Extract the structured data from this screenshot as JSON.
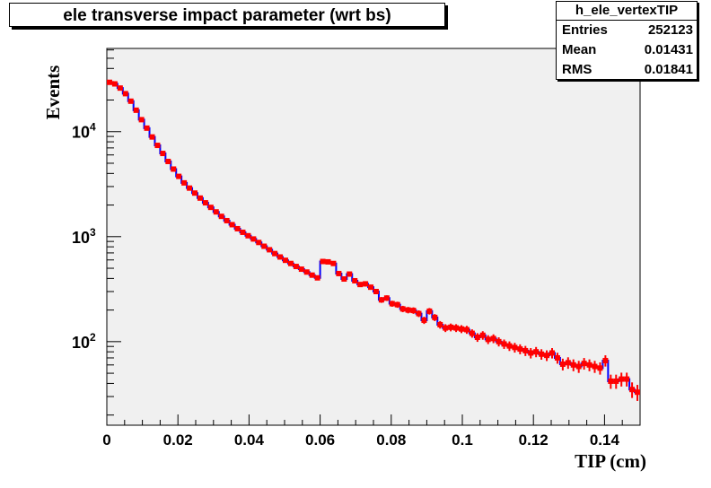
{
  "chart_data": {
    "type": "histogram",
    "title": "ele transverse impact parameter (wrt bs)",
    "xlabel": "TIP (cm)",
    "ylabel": "Events",
    "xlim": [
      0,
      0.15
    ],
    "ylim": [
      16,
      62000
    ],
    "y_scale": "log",
    "grid": false,
    "x_ticks": [
      0,
      0.02,
      0.04,
      0.06,
      0.08,
      0.1,
      0.12,
      0.14
    ],
    "x_tick_labels": [
      "0",
      "0.02",
      "0.04",
      "0.06",
      "0.08",
      "0.1",
      "0.12",
      "0.14"
    ],
    "y_tick_labels": [
      {
        "value": 10000,
        "base": "10",
        "exp": "4"
      },
      {
        "value": 1000,
        "base": "10",
        "exp": "3"
      },
      {
        "value": 100,
        "base": "10",
        "exp": "2"
      }
    ],
    "series": [
      {
        "style": "line",
        "color": "#0000ff",
        "x": [
          0.0,
          0.0015,
          0.003,
          0.0045,
          0.006,
          0.0075,
          0.009,
          0.0105,
          0.012,
          0.0135,
          0.015,
          0.0165,
          0.018,
          0.0195,
          0.021,
          0.0225,
          0.024,
          0.0255,
          0.027,
          0.0285,
          0.03,
          0.0315,
          0.033,
          0.0345,
          0.036,
          0.0375,
          0.039,
          0.0405,
          0.042,
          0.0435,
          0.045,
          0.0465,
          0.048,
          0.0495,
          0.051,
          0.0525,
          0.054,
          0.0555,
          0.057,
          0.0585,
          0.06,
          0.0615,
          0.063,
          0.0645,
          0.066,
          0.0675,
          0.069,
          0.0705,
          0.072,
          0.0735,
          0.075,
          0.0765,
          0.078,
          0.0795,
          0.081,
          0.0825,
          0.084,
          0.0855,
          0.087,
          0.0885,
          0.09,
          0.0915,
          0.093,
          0.0945,
          0.096,
          0.0975,
          0.099,
          0.1005,
          0.102,
          0.1035,
          0.105,
          0.1065,
          0.108,
          0.1095,
          0.111,
          0.1125,
          0.114,
          0.1155,
          0.117,
          0.1185,
          0.12,
          0.1215,
          0.123,
          0.1245,
          0.126,
          0.1275,
          0.129,
          0.1305,
          0.132,
          0.1335,
          0.135,
          0.1365,
          0.138,
          0.1395,
          0.141,
          0.1425,
          0.144,
          0.1455,
          0.147,
          0.1485
        ],
        "y": [
          29500,
          28500,
          26000,
          23000,
          19500,
          16000,
          13000,
          10800,
          8900,
          7400,
          6200,
          5200,
          4400,
          3750,
          3250,
          2900,
          2600,
          2330,
          2100,
          1900,
          1720,
          1560,
          1420,
          1300,
          1190,
          1100,
          1020,
          950,
          880,
          810,
          750,
          690,
          640,
          595,
          555,
          520,
          490,
          460,
          430,
          405,
          580,
          575,
          555,
          445,
          395,
          440,
          380,
          350,
          355,
          330,
          300,
          250,
          260,
          230,
          225,
          205,
          200,
          198,
          185,
          160,
          195,
          170,
          145,
          135,
          137,
          135,
          132,
          130,
          120,
          110,
          115,
          105,
          107,
          100,
          95,
          91,
          88,
          85,
          82,
          78,
          80,
          76,
          74,
          78,
          70,
          61,
          63,
          60,
          58,
          62,
          60,
          58,
          56,
          66,
          42,
          42,
          44,
          44,
          35,
          33
        ]
      },
      {
        "style": "markers-with-errors",
        "color": "#ff0000",
        "x": [
          0.00075,
          0.00225,
          0.00375,
          0.00525,
          0.00675,
          0.00825,
          0.00975,
          0.01125,
          0.01275,
          0.01425,
          0.01575,
          0.01725,
          0.01875,
          0.02025,
          0.02175,
          0.02325,
          0.02475,
          0.02625,
          0.02775,
          0.02925,
          0.03075,
          0.03225,
          0.03375,
          0.03525,
          0.03675,
          0.03825,
          0.03975,
          0.04125,
          0.04275,
          0.04425,
          0.04575,
          0.04725,
          0.04875,
          0.05025,
          0.05175,
          0.05325,
          0.05475,
          0.05625,
          0.05775,
          0.05925,
          0.06075,
          0.06225,
          0.06375,
          0.06525,
          0.06675,
          0.06825,
          0.06975,
          0.07125,
          0.07275,
          0.07425,
          0.07575,
          0.07725,
          0.07875,
          0.08025,
          0.08175,
          0.08325,
          0.08475,
          0.08625,
          0.08775,
          0.08925,
          0.09075,
          0.09225,
          0.09375,
          0.09525,
          0.09675,
          0.09825,
          0.09975,
          0.10125,
          0.10275,
          0.10425,
          0.10575,
          0.10725,
          0.10875,
          0.11025,
          0.11175,
          0.11325,
          0.11475,
          0.11625,
          0.11775,
          0.11925,
          0.12075,
          0.12225,
          0.12375,
          0.12525,
          0.12675,
          0.12825,
          0.12975,
          0.13125,
          0.13275,
          0.13425,
          0.13575,
          0.13725,
          0.13875,
          0.14025,
          0.14175,
          0.14325,
          0.14475,
          0.14625,
          0.14775,
          0.14925
        ],
        "y": [
          29500,
          28500,
          26000,
          23000,
          19500,
          16000,
          13000,
          10800,
          8900,
          7400,
          6200,
          5200,
          4400,
          3750,
          3250,
          2900,
          2600,
          2330,
          2100,
          1900,
          1720,
          1560,
          1420,
          1300,
          1190,
          1100,
          1020,
          950,
          880,
          810,
          750,
          690,
          640,
          595,
          555,
          520,
          490,
          460,
          430,
          405,
          580,
          575,
          555,
          445,
          395,
          440,
          380,
          350,
          355,
          330,
          300,
          250,
          260,
          230,
          225,
          205,
          200,
          198,
          185,
          160,
          195,
          170,
          145,
          135,
          137,
          135,
          132,
          130,
          120,
          110,
          115,
          105,
          107,
          100,
          95,
          91,
          88,
          85,
          82,
          78,
          80,
          76,
          74,
          78,
          70,
          61,
          63,
          60,
          58,
          62,
          60,
          58,
          56,
          66,
          42,
          42,
          44,
          44,
          35,
          33
        ]
      }
    ]
  },
  "title_text": "ele transverse impact parameter (wrt bs)",
  "stats": {
    "name": "h_ele_vertexTIP",
    "rows": [
      {
        "label": "Entries",
        "value": "252123"
      },
      {
        "label": "Mean",
        "value": "0.01431"
      },
      {
        "label": "RMS",
        "value": "0.01841"
      }
    ]
  },
  "colors": {
    "frame_bg": "#f0f0f0",
    "line": "#0000ff",
    "markers": "#ff0000"
  }
}
